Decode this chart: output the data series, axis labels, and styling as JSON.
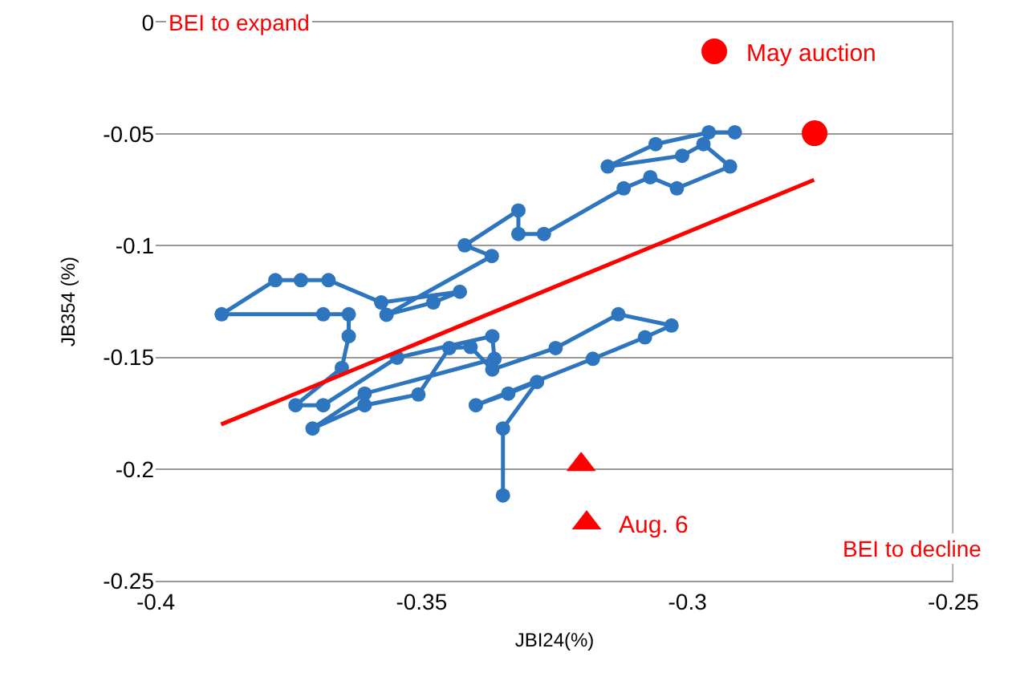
{
  "chart_data": {
    "type": "line",
    "xlabel": "JBI24(%)",
    "ylabel": "JB354 (%)",
    "xlim": [
      -0.4,
      -0.25
    ],
    "xticks": [
      -0.4,
      -0.35,
      -0.3,
      -0.25
    ],
    "ylim": [
      -0.25,
      0
    ],
    "yticks": [
      0,
      -0.05,
      -0.1,
      -0.15,
      -0.2,
      -0.25
    ],
    "grid": "y",
    "legend": "top right",
    "annotations": [
      "BEI to expand",
      "BEI to decline"
    ],
    "series": [
      {
        "marker": "circle",
        "color": "#2e75c0",
        "x": [
          -0.2911,
          -0.296,
          -0.306,
          -0.315,
          -0.301,
          -0.297,
          -0.292,
          -0.302,
          -0.307,
          -0.312,
          -0.327,
          -0.3318,
          -0.3318,
          -0.3419,
          -0.3368,
          -0.3566,
          -0.3478,
          -0.3428,
          -0.3576,
          -0.3675,
          -0.3727,
          -0.3775,
          -0.3876,
          -0.3685,
          -0.3637,
          -0.3637,
          -0.365,
          -0.3737,
          -0.3685,
          -0.3546,
          -0.3367,
          -0.3363,
          -0.3607,
          -0.3705,
          -0.3607,
          -0.3506,
          -0.3448,
          -0.3408,
          -0.3367,
          -0.3248,
          -0.313,
          -0.303,
          -0.308,
          -0.3178,
          -0.3398,
          -0.3337,
          -0.3283,
          -0.3347,
          -0.3347
        ],
        "values": [
          -0.0492,
          -0.0492,
          -0.0545,
          -0.0645,
          -0.0597,
          -0.0545,
          -0.0645,
          -0.0743,
          -0.0693,
          -0.0743,
          -0.0947,
          -0.0947,
          -0.0842,
          -0.0998,
          -0.1046,
          -0.1309,
          -0.1254,
          -0.1206,
          -0.1254,
          -0.1154,
          -0.1154,
          -0.1154,
          -0.1307,
          -0.1307,
          -0.1307,
          -0.1405,
          -0.1547,
          -0.1714,
          -0.1714,
          -0.1501,
          -0.1405,
          -0.1506,
          -0.1662,
          -0.1818,
          -0.1714,
          -0.1666,
          -0.1458,
          -0.1453,
          -0.1554,
          -0.1458,
          -0.1307,
          -0.1357,
          -0.141,
          -0.1506,
          -0.1714,
          -0.1662,
          -0.161,
          -0.1818,
          -0.2118
        ]
      },
      {
        "type": "line",
        "marker": "none",
        "color": "#ff0000",
        "x": [
          -0.3877,
          -0.2762
        ],
        "values": [
          -0.18,
          -0.0705
        ]
      },
      {
        "type": "scatter",
        "marker": "circle",
        "name": "May auction",
        "color": "#ff0000",
        "x": [
          -0.2761
        ],
        "values": [
          -0.0496
        ]
      },
      {
        "type": "scatter",
        "marker": "triangle",
        "name": "Aug. 6",
        "color": "#ff0000",
        "x": [
          -0.32
        ],
        "values": [
          -0.198
        ]
      }
    ]
  }
}
